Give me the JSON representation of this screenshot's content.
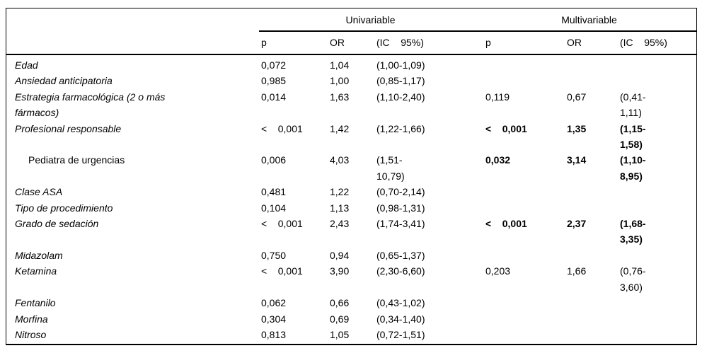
{
  "page": {
    "background": "#ffffff",
    "text_color": "#000000",
    "rule_color": "#000000"
  },
  "table": {
    "groups": [
      {
        "label": "Univariable"
      },
      {
        "label": "Multivariable"
      }
    ],
    "columns": {
      "label": "",
      "p": "p",
      "or": "OR",
      "ci": "(IC    95%)"
    },
    "rows": [
      {
        "label": "Edad",
        "italic": true,
        "indent": false,
        "uni": {
          "p": "0,072",
          "or": "1,04",
          "ci": "(1,00-1,09)"
        },
        "multi": null,
        "multi_bold": false
      },
      {
        "label": "Ansiedad anticipatoria",
        "italic": true,
        "indent": false,
        "uni": {
          "p": "0,985",
          "or": "1,00",
          "ci": "(0,85-1,17)"
        },
        "multi": null,
        "multi_bold": false
      },
      {
        "label": "Estrategia farmacológica (2 o más\nfármacos)",
        "italic": true,
        "indent": false,
        "uni": {
          "p": "0,014",
          "or": "1,63",
          "ci": "(1,10-2,40)"
        },
        "multi": {
          "p": "0,119",
          "or": "0,67",
          "ci": "(0,41-\n1,11)"
        },
        "multi_bold": false
      },
      {
        "label": "Profesional responsable",
        "italic": true,
        "indent": false,
        "uni": {
          "p": "<    0,001",
          "or": "1,42",
          "ci": "(1,22-1,66)"
        },
        "multi": {
          "p": "<    0,001",
          "or": "1,35",
          "ci": "(1,15-\n1,58)"
        },
        "multi_bold": true
      },
      {
        "label": "Pediatra de urgencias",
        "italic": false,
        "indent": true,
        "uni": {
          "p": "0,006",
          "or": "4,03",
          "ci": "(1,51-\n10,79)"
        },
        "multi": {
          "p": "0,032",
          "or": "3,14",
          "ci": "(1,10-\n8,95)"
        },
        "multi_bold": true
      },
      {
        "label": "Clase ASA",
        "italic": true,
        "indent": false,
        "uni": {
          "p": "0,481",
          "or": "1,22",
          "ci": "(0,70-2,14)"
        },
        "multi": null,
        "multi_bold": false
      },
      {
        "label": "Tipo de procedimiento",
        "italic": true,
        "indent": false,
        "uni": {
          "p": "0,104",
          "or": "1,13",
          "ci": "(0,98-1,31)"
        },
        "multi": null,
        "multi_bold": false
      },
      {
        "label": "Grado de sedación",
        "italic": true,
        "indent": false,
        "uni": {
          "p": "<    0,001",
          "or": "2,43",
          "ci": "(1,74-3,41)"
        },
        "multi": {
          "p": "<    0,001",
          "or": "2,37",
          "ci": "(1,68-\n3,35)"
        },
        "multi_bold": true
      },
      {
        "label": "Midazolam",
        "italic": true,
        "indent": false,
        "uni": {
          "p": "0,750",
          "or": "0,94",
          "ci": "(0,65-1,37)"
        },
        "multi": null,
        "multi_bold": false
      },
      {
        "label": "Ketamina",
        "italic": true,
        "indent": false,
        "uni": {
          "p": "<    0,001",
          "or": "3,90",
          "ci": "(2,30-6,60)"
        },
        "multi": {
          "p": "0,203",
          "or": "1,66",
          "ci": "(0,76-\n3,60)"
        },
        "multi_bold": false
      },
      {
        "label": "Fentanilo",
        "italic": true,
        "indent": false,
        "uni": {
          "p": "0,062",
          "or": "0,66",
          "ci": "(0,43-1,02)"
        },
        "multi": null,
        "multi_bold": false
      },
      {
        "label": "Morfina",
        "italic": true,
        "indent": false,
        "uni": {
          "p": "0,304",
          "or": "0,69",
          "ci": "(0,34-1,40)"
        },
        "multi": null,
        "multi_bold": false
      },
      {
        "label": "Nitroso",
        "italic": true,
        "indent": false,
        "uni": {
          "p": "0,813",
          "or": "1,05",
          "ci": "(0,72-1,51)"
        },
        "multi": null,
        "multi_bold": false
      }
    ]
  }
}
